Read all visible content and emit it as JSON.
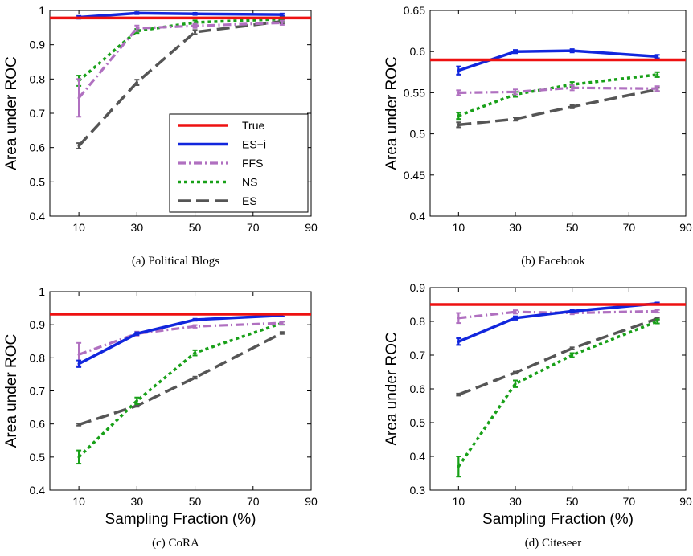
{
  "chart_data": [
    {
      "type": "line",
      "caption": "(a)  Political Blogs",
      "xlabel": "",
      "ylabel": "Area under ROC",
      "xlim": [
        0,
        90
      ],
      "ylim": [
        0.4,
        1.0
      ],
      "xticks": [
        "10",
        "30",
        "50",
        "70",
        "90"
      ],
      "yticks": [
        "0.4",
        "0.5",
        "0.6",
        "0.7",
        "0.8",
        "0.9",
        "1"
      ],
      "true_value": 0.978,
      "legend": {
        "position": "bottom-right",
        "entries": [
          "True",
          "ES−i",
          "FFS",
          "NS",
          "ES"
        ]
      },
      "x": [
        10,
        30,
        50,
        80
      ],
      "series": [
        {
          "name": "ES−i",
          "values": [
            0.98,
            0.992,
            0.99,
            0.988
          ],
          "err": [
            0.004,
            0.003,
            0.003,
            0.003
          ]
        },
        {
          "name": "FFS",
          "values": [
            0.745,
            0.948,
            0.955,
            0.964
          ],
          "err": [
            0.055,
            0.008,
            0.006,
            0.006
          ]
        },
        {
          "name": "NS",
          "values": [
            0.795,
            0.94,
            0.965,
            0.975
          ],
          "err": [
            0.015,
            0.006,
            0.006,
            0.008
          ]
        },
        {
          "name": "ES",
          "values": [
            0.605,
            0.79,
            0.937,
            0.968
          ],
          "err": [
            0.008,
            0.008,
            0.006,
            0.006
          ]
        }
      ]
    },
    {
      "type": "line",
      "caption": "(b)  Facebook",
      "xlabel": "",
      "ylabel": "Area under ROC",
      "xlim": [
        0,
        90
      ],
      "ylim": [
        0.4,
        0.65
      ],
      "xticks": [
        "10",
        "30",
        "50",
        "70",
        "90"
      ],
      "yticks": [
        "0.4",
        "0.45",
        "0.5",
        "0.55",
        "0.6",
        "0.65"
      ],
      "true_value": 0.59,
      "x": [
        10,
        30,
        50,
        80
      ],
      "series": [
        {
          "name": "ES−i",
          "values": [
            0.577,
            0.6,
            0.601,
            0.594
          ],
          "err": [
            0.005,
            0.002,
            0.002,
            0.002
          ]
        },
        {
          "name": "FFS",
          "values": [
            0.55,
            0.551,
            0.556,
            0.555
          ],
          "err": [
            0.003,
            0.003,
            0.003,
            0.003
          ]
        },
        {
          "name": "NS",
          "values": [
            0.522,
            0.548,
            0.56,
            0.572
          ],
          "err": [
            0.004,
            0.003,
            0.003,
            0.003
          ]
        },
        {
          "name": "ES",
          "values": [
            0.511,
            0.518,
            0.533,
            0.554
          ],
          "err": [
            0.003,
            0.002,
            0.002,
            0.002
          ]
        }
      ]
    },
    {
      "type": "line",
      "caption": "(c)  CoRA",
      "xlabel": "Sampling Fraction (%)",
      "ylabel": "Area under ROC",
      "xlim": [
        0,
        90
      ],
      "ylim": [
        0.4,
        1.0
      ],
      "xticks": [
        "10",
        "30",
        "50",
        "70",
        "90"
      ],
      "yticks": [
        "0.4",
        "0.5",
        "0.6",
        "0.7",
        "0.8",
        "0.9",
        "1"
      ],
      "true_value": 0.932,
      "x": [
        10,
        30,
        50,
        80
      ],
      "series": [
        {
          "name": "ES−i",
          "values": [
            0.782,
            0.873,
            0.915,
            0.928
          ],
          "err": [
            0.01,
            0.004,
            0.003,
            0.003
          ]
        },
        {
          "name": "FFS",
          "values": [
            0.81,
            0.873,
            0.895,
            0.905
          ],
          "err": [
            0.035,
            0.006,
            0.004,
            0.004
          ]
        },
        {
          "name": "NS",
          "values": [
            0.5,
            0.67,
            0.815,
            0.905
          ],
          "err": [
            0.02,
            0.01,
            0.008,
            0.005
          ]
        },
        {
          "name": "ES",
          "values": [
            0.598,
            0.655,
            0.74,
            0.875
          ],
          "err": [
            0.003,
            0.003,
            0.003,
            0.003
          ]
        }
      ]
    },
    {
      "type": "line",
      "caption": "(d)  Citeseer",
      "xlabel": "Sampling Fraction (%)",
      "ylabel": "Area under ROC",
      "xlim": [
        0,
        90
      ],
      "ylim": [
        0.3,
        0.9
      ],
      "xticks": [
        "10",
        "30",
        "50",
        "70",
        "90"
      ],
      "yticks": [
        "0.3",
        "0.4",
        "0.5",
        "0.6",
        "0.7",
        "0.8",
        "0.9"
      ],
      "true_value": 0.85,
      "x": [
        10,
        30,
        50,
        80
      ],
      "series": [
        {
          "name": "ES−i",
          "values": [
            0.74,
            0.81,
            0.83,
            0.853
          ],
          "err": [
            0.01,
            0.005,
            0.004,
            0.003
          ]
        },
        {
          "name": "FFS",
          "values": [
            0.81,
            0.828,
            0.825,
            0.83
          ],
          "err": [
            0.015,
            0.005,
            0.004,
            0.004
          ]
        },
        {
          "name": "NS",
          "values": [
            0.37,
            0.615,
            0.7,
            0.8
          ],
          "err": [
            0.03,
            0.01,
            0.006,
            0.006
          ]
        },
        {
          "name": "ES",
          "values": [
            0.583,
            0.648,
            0.72,
            0.808
          ],
          "err": [
            0.003,
            0.003,
            0.003,
            0.003
          ]
        }
      ]
    }
  ],
  "colors": {
    "True": "#ee1111",
    "ES−i": "#1126dd",
    "FFS": "#b070c0",
    "NS": "#18a018",
    "ES": "#555555"
  }
}
